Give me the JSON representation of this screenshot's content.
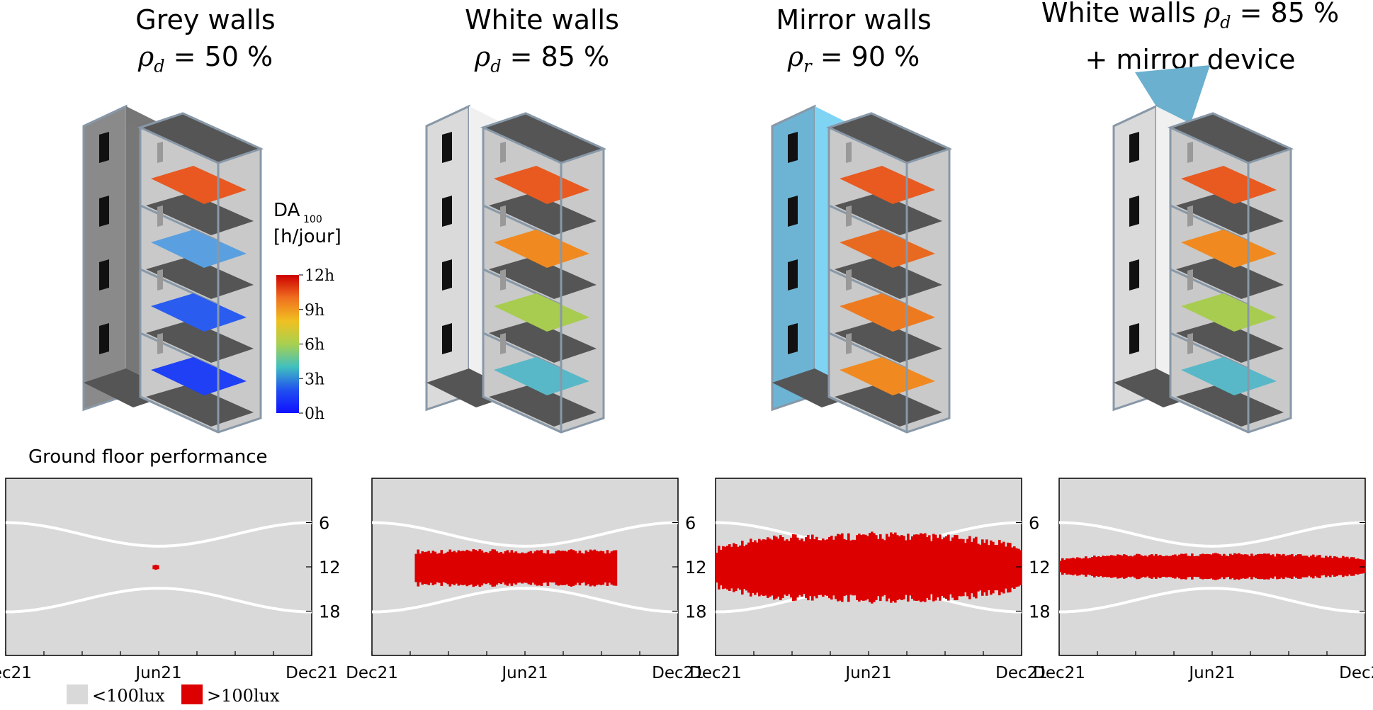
{
  "panels": [
    {
      "title_line1": "Grey walls",
      "title_line2_symbol": "ρ",
      "title_line2_sub": "d",
      "title_line2_value": "= 50 %",
      "wall_color": "#8a8a8a",
      "inner_wall_color": "#777777",
      "floor_colors": [
        "#e85820",
        "#5aa0e0",
        "#2a5cf0",
        "#2040f5"
      ],
      "sunlit_periods": []
    },
    {
      "title_line1": "White walls",
      "title_line2_symbol": "ρ",
      "title_line2_sub": "d",
      "title_line2_value": "= 85 %",
      "wall_color": "#dadada",
      "inner_wall_color": "#f0f0f0",
      "floor_colors": [
        "#e85a20",
        "#f08a20",
        "#a8cc50",
        "#58b8c8"
      ]
    },
    {
      "title_line1": "Mirror walls",
      "title_line2_symbol": "ρ",
      "title_line2_sub": "r",
      "title_line2_value": "= 90 %",
      "wall_color": "#6db4d4",
      "inner_wall_color": "#7fd4f4",
      "floor_colors": [
        "#e85a20",
        "#e86a20",
        "#ee7a20",
        "#f08a20"
      ]
    },
    {
      "title_line1": "White walls",
      "title_line1_extra_symbol": "ρ",
      "title_line1_extra_sub": "d",
      "title_line1_extra_value": "= 85 %",
      "title_line2_text": "+ mirror device",
      "wall_color": "#dadada",
      "inner_wall_color": "#f0f0f0",
      "floor_colors": [
        "#e85a20",
        "#f08a20",
        "#a8cc50",
        "#58b8c8"
      ],
      "mirror_device_color": "#6bb0cf"
    }
  ],
  "colorbar": {
    "label_main": "DA",
    "label_sub": "100",
    "label_unit": "[h/jour]",
    "ticks": [
      "12h",
      "9h",
      "6h",
      "3h",
      "0h"
    ],
    "colors": [
      "#cc0000",
      "#f07020",
      "#f0c020",
      "#a8d050",
      "#40c0c0",
      "#2050f0",
      "#1010ff"
    ]
  },
  "section_label": "Ground floor performance",
  "chart_data": [
    {
      "type": "heatmap",
      "panel": "Grey walls",
      "x_ticks": [
        "Dec21",
        "Jun21",
        "Dec21"
      ],
      "y_ticks": [
        "6",
        "12",
        "18"
      ],
      "ylim": [
        24,
        0
      ],
      "sunlit_blocks": [
        {
          "day_start": 0.48,
          "day_end": 0.5,
          "hour_start": 11.7,
          "hour_end": 12.4
        }
      ]
    },
    {
      "type": "heatmap",
      "panel": "White walls",
      "x_ticks": [
        "Dec21",
        "Jun21",
        "Dec21"
      ],
      "y_ticks": [
        "6",
        "12",
        "18"
      ],
      "ylim": [
        24,
        0
      ],
      "sunlit_blocks": [
        {
          "day_start": 0.14,
          "day_end": 0.8,
          "hour_start": 9.6,
          "hour_end": 14.7
        }
      ]
    },
    {
      "type": "heatmap",
      "panel": "Mirror walls",
      "x_ticks": [
        "Dec21",
        "Jun21",
        "Dec21"
      ],
      "y_ticks": [
        "6",
        "12",
        "18"
      ],
      "ylim": [
        24,
        0
      ],
      "sunlit_blocks": [
        {
          "day_start": 0.0,
          "day_end": 1.0,
          "hour_start": 7.2,
          "hour_end": 17.0
        }
      ]
    },
    {
      "type": "heatmap",
      "panel": "White walls + mirror device",
      "x_ticks": [
        "Dec21",
        "Jun21",
        "Dec21"
      ],
      "y_ticks": [
        "6",
        "12",
        "18"
      ],
      "ylim": [
        24,
        0
      ],
      "sunlit_blocks": [
        {
          "day_start": 0.0,
          "day_end": 1.0,
          "hour_start": 10.1,
          "hour_end": 13.8
        }
      ]
    }
  ],
  "legend": {
    "items": [
      {
        "label": "<100lux",
        "color": "#d9d9d9"
      },
      {
        "label": ">100lux",
        "color": "#dd0000"
      }
    ]
  }
}
